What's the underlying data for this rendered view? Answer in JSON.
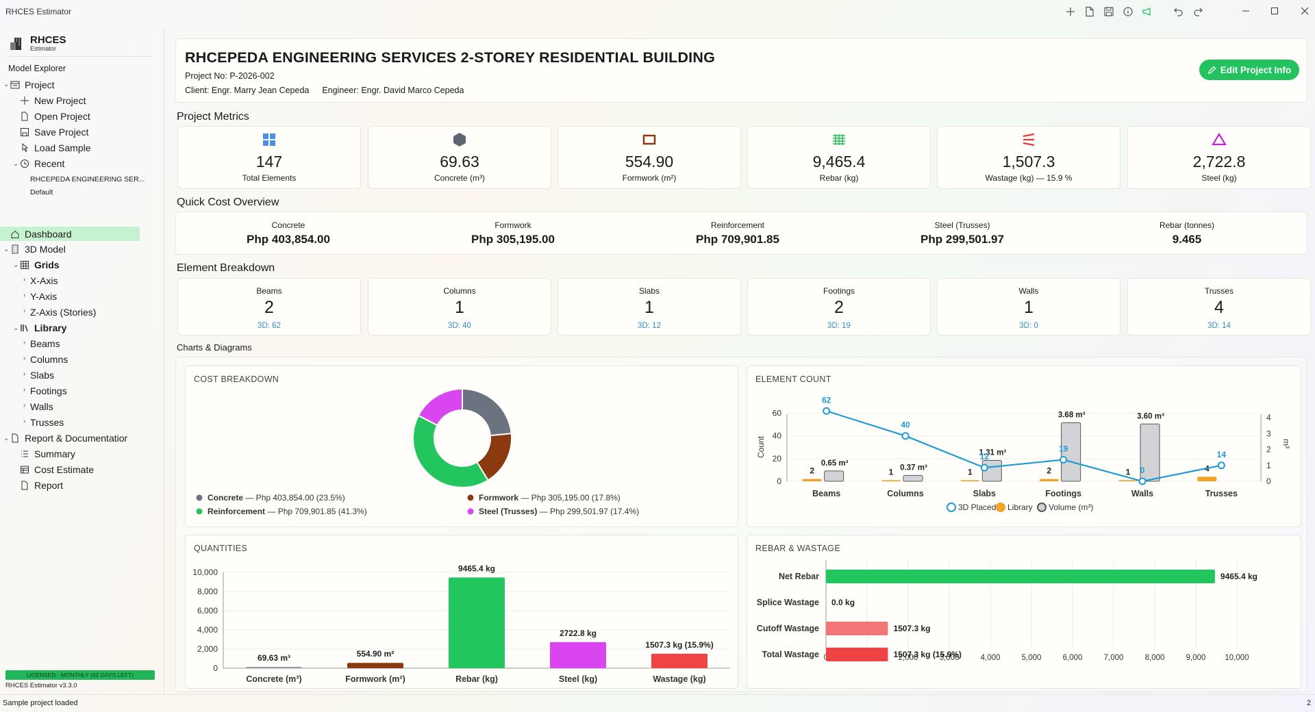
{
  "app_title": "RHCES Estimator",
  "brand": {
    "name": "RHCES",
    "sub": "Estimator"
  },
  "explorer_title": "Model Explorer",
  "tree": {
    "project": "Project",
    "new_project": "New Project",
    "open_project": "Open Project",
    "save_project": "Save Project",
    "load_sample": "Load Sample",
    "recent": "Recent",
    "recent_item": "RHCEPEDA ENGINEERING SER...",
    "recent_default": "Default",
    "dashboard": "Dashboard",
    "model3d": "3D Model",
    "grids": "Grids",
    "x_axis": "X-Axis",
    "y_axis": "Y-Axis",
    "z_axis": "Z-Axis (Stories)",
    "library": "Library",
    "beams": "Beams",
    "columns": "Columns",
    "slabs": "Slabs",
    "footings": "Footings",
    "walls": "Walls",
    "trusses": "Trusses",
    "report_doc": "Report & Documentatior",
    "summary": "Summary",
    "cost_estimate": "Cost Estimate",
    "report": "Report"
  },
  "license": "LICENSED - MONTHLY (62 DAYS LEFT)",
  "version": "RHCES Estimator v3.3.0",
  "status": {
    "message": "Sample project loaded",
    "right": "2"
  },
  "header": {
    "title": "RHCEPEDA ENGINEERING SERVICES 2-STOREY RESIDENTIAL BUILDING",
    "project_no_label": "Project No:",
    "project_no": "P-2026-002",
    "client_label": "Client:",
    "client": "Engr. Marry Jean Cepeda",
    "engineer_label": "Engineer:",
    "engineer": "Engr. David Marco Cepeda",
    "edit_button": "Edit Project Info"
  },
  "sections": {
    "metrics": "Project Metrics",
    "cost": "Quick Cost Overview",
    "elements": "Element Breakdown",
    "charts": "Charts & Diagrams"
  },
  "metrics": [
    {
      "value": "147",
      "label": "Total Elements",
      "icon": "grid-icon",
      "color": "#4a90e2"
    },
    {
      "value": "69.63",
      "label": "Concrete (m³)",
      "icon": "hexagon-icon",
      "color": "#5f6670"
    },
    {
      "value": "554.90",
      "label": "Formwork (m²)",
      "icon": "frame-icon",
      "color": "#8b3a0f"
    },
    {
      "value": "9,465.4",
      "label": "Rebar (kg)",
      "icon": "rebar-icon",
      "color": "#22c35e"
    },
    {
      "value": "1,507.3",
      "label": "Wastage (kg) —  15.9 %",
      "icon": "wastage-icon",
      "color": "#e23b3b"
    },
    {
      "value": "2,722.8",
      "label": "Steel (kg)",
      "icon": "triangle-icon",
      "color": "#c026d3"
    }
  ],
  "cost_overview": [
    {
      "label": "Concrete",
      "value": "Php 403,854.00"
    },
    {
      "label": "Formwork",
      "value": "Php 305,195.00"
    },
    {
      "label": "Reinforcement",
      "value": "Php 709,901.85"
    },
    {
      "label": "Steel (Trusses)",
      "value": "Php 299,501.97"
    },
    {
      "label": "Rebar (tonnes)",
      "value": "9.465"
    }
  ],
  "elements": [
    {
      "label": "Beams",
      "value": "2",
      "sub": "3D: 62"
    },
    {
      "label": "Columns",
      "value": "1",
      "sub": "3D: 40"
    },
    {
      "label": "Slabs",
      "value": "1",
      "sub": "3D: 12"
    },
    {
      "label": "Footings",
      "value": "2",
      "sub": "3D: 19"
    },
    {
      "label": "Walls",
      "value": "1",
      "sub": "3D: 0"
    },
    {
      "label": "Trusses",
      "value": "4",
      "sub": "3D: 14"
    }
  ],
  "chart_titles": {
    "cost": "COST BREAKDOWN",
    "count": "ELEMENT COUNT",
    "quantities": "QUANTITIES",
    "rebar": "REBAR & WASTAGE"
  },
  "colors": {
    "accent": "#22c35e",
    "concrete": "#6b7280",
    "formwork": "#8b3a0f",
    "reinforcement": "#22c55e",
    "steel": "#d946ef",
    "wastage": "#ef4444",
    "line": "#1f9bd6",
    "library": "#f2a324",
    "volume": "#d1d3d6"
  },
  "chart_data": [
    {
      "type": "pie",
      "title": "COST BREAKDOWN",
      "slices": [
        {
          "name": "Concrete",
          "value": 403854.0,
          "text": "— Php 403,854.00 (23.5%)",
          "color": "#6b7280"
        },
        {
          "name": "Formwork",
          "value": 305195.0,
          "text": "— Php 305,195.00 (17.8%)",
          "color": "#8b3a0f"
        },
        {
          "name": "Reinforcement",
          "value": 709901.85,
          "text": "— Php 709,901.85 (41.3%)",
          "color": "#22c55e"
        },
        {
          "name": "Steel (Trusses)",
          "value": 299501.97,
          "text": "— Php 299,501.97 (17.4%)",
          "color": "#d946ef"
        }
      ],
      "legend": "bottom"
    },
    {
      "type": "bar",
      "title": "ELEMENT COUNT",
      "categories": [
        "Beams",
        "Columns",
        "Slabs",
        "Footings",
        "Walls",
        "Trusses"
      ],
      "ylabel": "Count",
      "y2label": "m³",
      "ylim": [
        0,
        70
      ],
      "y2lim": [
        0,
        4
      ],
      "yticks": [
        "0",
        "20",
        "40",
        "60"
      ],
      "y2ticks": [
        "0",
        "1",
        "2",
        "3",
        "4"
      ],
      "series": [
        {
          "name": "3D Placed",
          "kind": "line",
          "values": [
            62,
            40,
            12,
            19,
            0,
            14
          ],
          "labels": [
            "62",
            "40",
            "12",
            "19",
            "0",
            "14"
          ]
        },
        {
          "name": "Library",
          "kind": "bar",
          "values": [
            2,
            1,
            1,
            2,
            1,
            4
          ],
          "labels": [
            "2",
            "1",
            "1",
            "2",
            "1",
            "4"
          ]
        },
        {
          "name": "Volume (m³)",
          "kind": "bar",
          "axis": "y2",
          "values": [
            0.65,
            0.37,
            1.31,
            3.68,
            3.6,
            0
          ],
          "labels": [
            "0.65 m³",
            "0.37 m³",
            "1.31 m³",
            "3.68 m³",
            "3.60 m³",
            ""
          ]
        }
      ],
      "legend": "bottom"
    },
    {
      "type": "bar",
      "title": "QUANTITIES",
      "categories": [
        "Concrete (m³)",
        "Formwork (m²)",
        "Rebar (kg)",
        "Steel (kg)",
        "Wastage (kg)"
      ],
      "values": [
        69.63,
        554.9,
        9465.4,
        2722.8,
        1507.3
      ],
      "labels": [
        "69.63 m³",
        "554.90 m²",
        "9465.4 kg",
        "2722.8 kg",
        "1507.3 kg (15.9%)"
      ],
      "colors": [
        "#9aa0a6",
        "#8b3a0f",
        "#22c55e",
        "#d946ef",
        "#ef4444"
      ],
      "ylim": [
        0,
        10000
      ],
      "yticks": [
        "0",
        "2,000",
        "4,000",
        "6,000",
        "8,000",
        "10,000"
      ]
    },
    {
      "type": "bar",
      "orientation": "horizontal",
      "title": "REBAR & WASTAGE",
      "categories": [
        "Net Rebar",
        "Splice Wastage",
        "Cutoff Wastage",
        "Total Wastage"
      ],
      "values": [
        9465.4,
        0,
        1507.3,
        1507.3
      ],
      "labels": [
        "9465.4 kg",
        "0.0 kg",
        "1507.3 kg",
        "1507.3 kg (15.9%)"
      ],
      "colors": [
        "#22c55e",
        "#22c55e",
        "#f37676",
        "#ef4444"
      ],
      "xlim": [
        0,
        10000
      ],
      "xticks": [
        "0",
        "1,000",
        "2,000",
        "3,000",
        "4,000",
        "5,000",
        "6,000",
        "7,000",
        "8,000",
        "9,000",
        "10,000"
      ]
    }
  ]
}
